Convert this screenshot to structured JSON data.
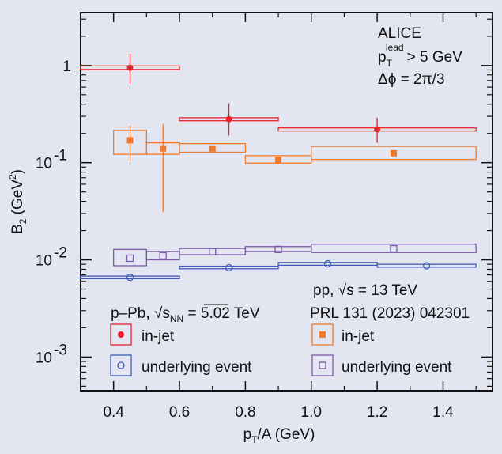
{
  "chart_data": {
    "type": "scatter",
    "title": "",
    "xlabel": "p_T/A (GeV)",
    "ylabel": "B_2 (GeV^2)",
    "xlim": [
      0.3,
      1.55
    ],
    "ylim": [
      0.00045,
      3.5
    ],
    "yscale": "log",
    "grid": false,
    "x_ticks": [
      0.4,
      0.6,
      0.8,
      1.0,
      1.2,
      1.4
    ],
    "x_tick_labels": [
      "0.4",
      "0.6",
      "0.8",
      "1.0",
      "1.2",
      "1.4"
    ],
    "y_ticks": [
      1,
      0.1,
      0.01,
      0.001
    ],
    "y_tick_main": [
      "1",
      "10",
      "10",
      "10"
    ],
    "y_tick_exp": [
      "",
      "-1",
      "-2",
      "-3"
    ],
    "experiment_label": "ALICE",
    "cut_pt": [
      "p",
      "T",
      "lead",
      "> 5 GeV"
    ],
    "cut_dphi": "Δϕ = 2π/3",
    "pp_label": "pp, √s = 13 TeV",
    "reference": "PRL 131 (2023) 042301",
    "ppb_label": [
      "p–Pb, ",
      "√s",
      "NN",
      " = 5.02 TeV"
    ],
    "colors": {
      "ppb_injet": "#e8232b",
      "ppb_ue": "#3f5bb5",
      "pp_injet": "#f07a2a",
      "pp_ue": "#7b5aa6"
    },
    "series": [
      {
        "name": "in-jet",
        "group": "p-Pb",
        "marker": "filled-circle",
        "color_key": "ppb_injet",
        "points": [
          {
            "x": 0.45,
            "y": 0.95,
            "xlo": 0.3,
            "xhi": 0.6,
            "yerr_lo": 0.65,
            "yerr_hi": 1.32,
            "sys_lo": 0.91,
            "sys_hi": 0.99
          },
          {
            "x": 0.75,
            "y": 0.28,
            "xlo": 0.6,
            "xhi": 0.9,
            "yerr_lo": 0.19,
            "yerr_hi": 0.41,
            "sys_lo": 0.27,
            "sys_hi": 0.29
          },
          {
            "x": 1.2,
            "y": 0.22,
            "xlo": 0.9,
            "xhi": 1.5,
            "yerr_lo": 0.16,
            "yerr_hi": 0.29,
            "sys_lo": 0.212,
            "sys_hi": 0.228
          }
        ]
      },
      {
        "name": "underlying event",
        "group": "p-Pb",
        "marker": "open-circle",
        "color_key": "ppb_ue",
        "points": [
          {
            "x": 0.45,
            "y": 0.0066,
            "xlo": 0.3,
            "xhi": 0.6,
            "sys_lo": 0.0064,
            "sys_hi": 0.0068
          },
          {
            "x": 0.75,
            "y": 0.0083,
            "xlo": 0.6,
            "xhi": 0.9,
            "sys_lo": 0.0081,
            "sys_hi": 0.0086
          },
          {
            "x": 1.05,
            "y": 0.0091,
            "xlo": 0.9,
            "xhi": 1.2,
            "sys_lo": 0.0088,
            "sys_hi": 0.0094
          },
          {
            "x": 1.35,
            "y": 0.0087,
            "xlo": 1.2,
            "xhi": 1.5,
            "sys_lo": 0.0084,
            "sys_hi": 0.009
          }
        ]
      },
      {
        "name": "in-jet",
        "group": "pp",
        "marker": "filled-square",
        "color_key": "pp_injet",
        "points": [
          {
            "x": 0.45,
            "y": 0.17,
            "xlo": 0.4,
            "xhi": 0.5,
            "yerr_lo": 0.105,
            "yerr_hi": 0.24,
            "sys_lo": 0.122,
            "sys_hi": 0.215
          },
          {
            "x": 0.55,
            "y": 0.14,
            "xlo": 0.5,
            "xhi": 0.6,
            "yerr_lo": 0.031,
            "yerr_hi": 0.25,
            "sys_lo": 0.122,
            "sys_hi": 0.16
          },
          {
            "x": 0.7,
            "y": 0.14,
            "xlo": 0.6,
            "xhi": 0.8,
            "sys_lo": 0.128,
            "sys_hi": 0.157
          },
          {
            "x": 0.9,
            "y": 0.107,
            "xlo": 0.8,
            "xhi": 1.0,
            "sys_lo": 0.099,
            "sys_hi": 0.118
          },
          {
            "x": 1.25,
            "y": 0.125,
            "xlo": 1.0,
            "xhi": 1.5,
            "sys_lo": 0.108,
            "sys_hi": 0.147
          }
        ]
      },
      {
        "name": "underlying event",
        "group": "pp",
        "marker": "open-square",
        "color_key": "pp_ue",
        "points": [
          {
            "x": 0.45,
            "y": 0.0104,
            "xlo": 0.4,
            "xhi": 0.5,
            "sys_lo": 0.0087,
            "sys_hi": 0.0128
          },
          {
            "x": 0.55,
            "y": 0.011,
            "xlo": 0.5,
            "xhi": 0.6,
            "sys_lo": 0.01,
            "sys_hi": 0.0122
          },
          {
            "x": 0.7,
            "y": 0.0121,
            "xlo": 0.6,
            "xhi": 0.8,
            "sys_lo": 0.0113,
            "sys_hi": 0.0131
          },
          {
            "x": 0.9,
            "y": 0.0128,
            "xlo": 0.8,
            "xhi": 1.0,
            "sys_lo": 0.0122,
            "sys_hi": 0.0137
          },
          {
            "x": 1.25,
            "y": 0.013,
            "xlo": 1.0,
            "xhi": 1.5,
            "sys_lo": 0.0119,
            "sys_hi": 0.0145
          }
        ]
      }
    ]
  }
}
